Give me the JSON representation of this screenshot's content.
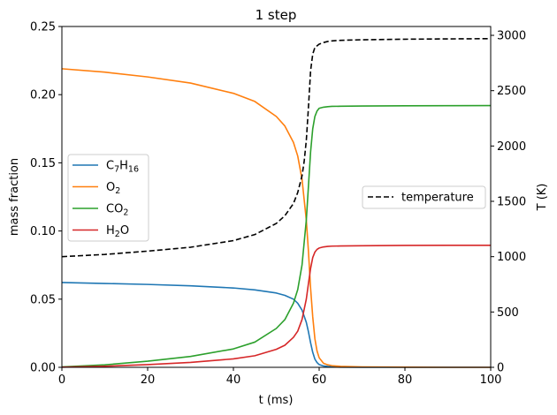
{
  "chart_data": {
    "type": "line",
    "title": "1 step",
    "xlabel": "t (ms)",
    "ylabel_left": "mass fraction",
    "ylabel_right": "T (K)",
    "xlim": [
      0,
      100
    ],
    "ylim_left": [
      0,
      0.25
    ],
    "ylim_right": [
      0,
      3080
    ],
    "x_ticks": [
      "0",
      "20",
      "40",
      "60",
      "80",
      "100"
    ],
    "y_left_ticks": [
      "0.00",
      "0.05",
      "0.10",
      "0.15",
      "0.20",
      "0.25"
    ],
    "y_right_ticks": [
      "0",
      "500",
      "1000",
      "1500",
      "2000",
      "2500",
      "3000"
    ],
    "grid": false,
    "legend_left_placement": "center-left",
    "legend_right_placement": "center-right",
    "x": [
      0,
      10,
      20,
      30,
      40,
      45,
      50,
      52,
      54,
      55,
      56,
      57,
      57.5,
      58,
      58.5,
      59,
      59.5,
      60,
      61,
      62,
      63,
      65,
      70,
      80,
      90,
      100
    ],
    "series": [
      {
        "name": "C7H16",
        "name_parts": [
          {
            "t": "C"
          },
          {
            "t": "7",
            "sub": true
          },
          {
            "t": "H"
          },
          {
            "t": "16",
            "sub": true
          }
        ],
        "axis": "left",
        "color": "#1f77b4",
        "dash": "solid",
        "values": [
          0.0622,
          0.0615,
          0.0608,
          0.0598,
          0.0582,
          0.0568,
          0.0545,
          0.0528,
          0.05,
          0.047,
          0.042,
          0.033,
          0.026,
          0.018,
          0.011,
          0.006,
          0.0035,
          0.002,
          0.001,
          0.0006,
          0.0003,
          0.0001,
          3e-05,
          0.0,
          0.0,
          0.0
        ]
      },
      {
        "name": "O2",
        "name_parts": [
          {
            "t": "O"
          },
          {
            "t": "2",
            "sub": true
          }
        ],
        "axis": "left",
        "color": "#ff7f0e",
        "dash": "solid",
        "values": [
          0.219,
          0.2165,
          0.213,
          0.2085,
          0.201,
          0.195,
          0.184,
          0.177,
          0.165,
          0.155,
          0.138,
          0.108,
          0.085,
          0.058,
          0.037,
          0.021,
          0.012,
          0.007,
          0.003,
          0.0018,
          0.0012,
          0.0007,
          0.0003,
          0.0001,
          0.0,
          0.0
        ]
      },
      {
        "name": "CO2",
        "name_parts": [
          {
            "t": "CO"
          },
          {
            "t": "2",
            "sub": true
          }
        ],
        "axis": "left",
        "color": "#2ca02c",
        "dash": "solid",
        "values": [
          0.0003,
          0.0018,
          0.0045,
          0.008,
          0.0135,
          0.0185,
          0.0285,
          0.035,
          0.047,
          0.057,
          0.075,
          0.108,
          0.133,
          0.158,
          0.175,
          0.184,
          0.188,
          0.19,
          0.1908,
          0.1912,
          0.1914,
          0.1915,
          0.1917,
          0.1918,
          0.1919,
          0.192
        ]
      },
      {
        "name": "H2O",
        "name_parts": [
          {
            "t": "H"
          },
          {
            "t": "2",
            "sub": true
          },
          {
            "t": "O"
          }
        ],
        "axis": "left",
        "color": "#d62728",
        "dash": "solid",
        "values": [
          0.0001,
          0.0008,
          0.002,
          0.0036,
          0.0062,
          0.0085,
          0.0132,
          0.0162,
          0.022,
          0.0265,
          0.035,
          0.05,
          0.0615,
          0.0725,
          0.0805,
          0.0845,
          0.0865,
          0.0875,
          0.0883,
          0.0887,
          0.0889,
          0.089,
          0.0892,
          0.0894,
          0.0895,
          0.0895
        ]
      },
      {
        "name": "temperature",
        "axis": "right",
        "color": "#000000",
        "dash": "dashed",
        "x": [
          0,
          10,
          20,
          30,
          40,
          45,
          50,
          52,
          54,
          55,
          56,
          56.5,
          57,
          57.5,
          58,
          58.5,
          59,
          60,
          61,
          62,
          63,
          65,
          70,
          80,
          90,
          100
        ],
        "values": [
          1000,
          1020,
          1050,
          1085,
          1145,
          1200,
          1300,
          1370,
          1480,
          1580,
          1730,
          1860,
          2050,
          2350,
          2680,
          2830,
          2890,
          2920,
          2935,
          2945,
          2950,
          2955,
          2960,
          2965,
          2968,
          2970
        ]
      }
    ]
  }
}
